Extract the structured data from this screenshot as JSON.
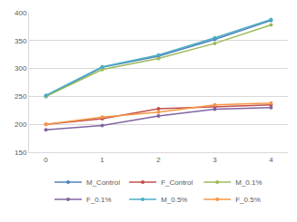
{
  "chart_data": {
    "type": "line",
    "categories": [
      "0",
      "1",
      "2",
      "3",
      "4"
    ],
    "series": [
      {
        "name": "M_Control",
        "color": "#4f81bd",
        "values": [
          250,
          302,
          322,
          352,
          386
        ]
      },
      {
        "name": "F_Control",
        "color": "#c0504d",
        "values": [
          200,
          210,
          228,
          232,
          235
        ]
      },
      {
        "name": "M_0.1%",
        "color": "#9bbb59",
        "values": [
          250,
          298,
          318,
          345,
          378
        ]
      },
      {
        "name": "F_0.1%",
        "color": "#8064a2",
        "values": [
          190,
          198,
          215,
          227,
          230
        ]
      },
      {
        "name": "M_0.5%",
        "color": "#4bacc6",
        "values": [
          252,
          303,
          324,
          355,
          388
        ]
      },
      {
        "name": "F_0.5%",
        "color": "#f79646",
        "values": [
          200,
          213,
          222,
          235,
          238
        ]
      }
    ],
    "ylim": [
      150,
      400
    ],
    "yticks": [
      150,
      200,
      250,
      300,
      350,
      400
    ],
    "grid": true,
    "legend": "bottom",
    "marker": "circle"
  }
}
